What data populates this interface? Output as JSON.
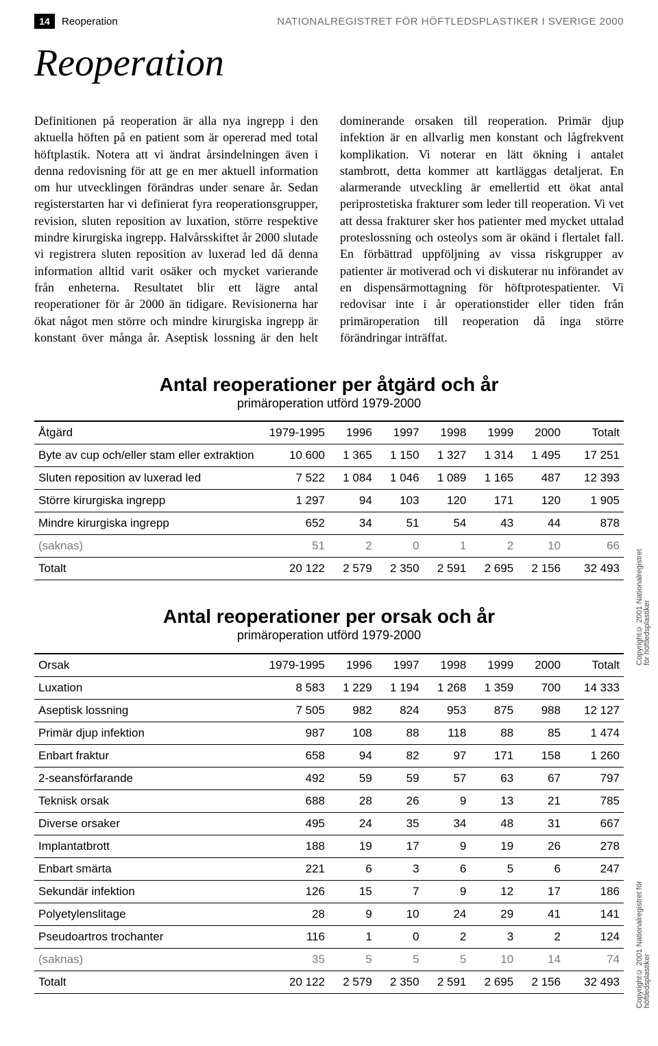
{
  "header": {
    "page_number": "14",
    "crumb": "Reoperation",
    "registry": "NATIONALREGISTRET FÖR HÖFTLEDSPLASTIKER I SVERIGE 2000"
  },
  "title": "Reoperation",
  "body": "Definitionen på reoperation är alla nya ingrepp i den aktuella höften på en patient som är opererad med total höftplastik. Notera att vi ändrat årsindelningen även i denna redovisning för att ge en mer aktuell information om hur utvecklingen förändras under senare år. Sedan registerstarten har vi definierat fyra reoperationsgrupper, revision, sluten reposition av luxation, större respektive mindre kirurgiska ingrepp. Halvårsskiftet år 2000 slutade vi registrera sluten reposition av luxerad led då denna information alltid varit osäker och mycket varierande från enheterna. Resultatet blir ett lägre antal reoperationer för år 2000 än tidigare. Revisionerna har ökat något men större och mindre kirurgiska ingrepp är konstant över många år. Aseptisk lossning är den helt dominerande orsaken till reoperation. Primär djup infektion är en allvarlig men konstant och lågfrekvent komplikation. Vi noterar en lätt ökning i antalet stambrott, detta kommer att kartläggas detaljerat. En alarmerande utveckling är emellertid ett ökat antal periprostetiska frakturer som leder till reoperation. Vi vet att dessa frakturer sker hos patienter med mycket uttalad proteslossning och osteolys som är okänd i flertalet fall. En förbättrad uppföljning av vissa riskgrupper av patienter är motiverad och vi diskuterar nu införandet av en dispensärmottagning för höftprotespatienter. Vi redovisar inte i år operationstider eller tiden från primäroperation till reoperation då inga större förändringar inträffat.",
  "copyright": "Copyright© 2001 Nationalregistret för höftledsplastiker",
  "table1": {
    "title": "Antal reoperationer per åtgärd och år",
    "subtitle": "primäroperation utförd 1979-2000",
    "columns": [
      "Åtgärd",
      "1979-1995",
      "1996",
      "1997",
      "1998",
      "1999",
      "2000",
      "Totalt"
    ],
    "rows": [
      {
        "label": "Byte av cup och/eller stam eller extraktion",
        "v": [
          "10 600",
          "1 365",
          "1 150",
          "1 327",
          "1 314",
          "1 495",
          "17 251"
        ]
      },
      {
        "label": "Sluten reposition av luxerad led",
        "v": [
          "7 522",
          "1 084",
          "1 046",
          "1 089",
          "1 165",
          "487",
          "12 393"
        ]
      },
      {
        "label": "Större kirurgiska ingrepp",
        "v": [
          "1 297",
          "94",
          "103",
          "120",
          "171",
          "120",
          "1 905"
        ]
      },
      {
        "label": "Mindre kirurgiska ingrepp",
        "v": [
          "652",
          "34",
          "51",
          "54",
          "43",
          "44",
          "878"
        ]
      },
      {
        "label": "(saknas)",
        "muted": true,
        "v": [
          "51",
          "2",
          "0",
          "1",
          "2",
          "10",
          "66"
        ]
      }
    ],
    "total": {
      "label": "Totalt",
      "v": [
        "20 122",
        "2 579",
        "2 350",
        "2 591",
        "2 695",
        "2 156",
        "32 493"
      ]
    }
  },
  "table2": {
    "title": "Antal reoperationer per orsak och år",
    "subtitle": "primäroperation utförd 1979-2000",
    "columns": [
      "Orsak",
      "1979-1995",
      "1996",
      "1997",
      "1998",
      "1999",
      "2000",
      "Totalt"
    ],
    "rows": [
      {
        "label": "Luxation",
        "v": [
          "8 583",
          "1 229",
          "1 194",
          "1 268",
          "1 359",
          "700",
          "14 333"
        ]
      },
      {
        "label": "Aseptisk lossning",
        "v": [
          "7 505",
          "982",
          "824",
          "953",
          "875",
          "988",
          "12 127"
        ]
      },
      {
        "label": "Primär djup infektion",
        "v": [
          "987",
          "108",
          "88",
          "118",
          "88",
          "85",
          "1 474"
        ]
      },
      {
        "label": "Enbart fraktur",
        "v": [
          "658",
          "94",
          "82",
          "97",
          "171",
          "158",
          "1 260"
        ]
      },
      {
        "label": "2-seansförfarande",
        "v": [
          "492",
          "59",
          "59",
          "57",
          "63",
          "67",
          "797"
        ]
      },
      {
        "label": "Teknisk orsak",
        "v": [
          "688",
          "28",
          "26",
          "9",
          "13",
          "21",
          "785"
        ]
      },
      {
        "label": "Diverse orsaker",
        "v": [
          "495",
          "24",
          "35",
          "34",
          "48",
          "31",
          "667"
        ]
      },
      {
        "label": "Implantatbrott",
        "v": [
          "188",
          "19",
          "17",
          "9",
          "19",
          "26",
          "278"
        ]
      },
      {
        "label": "Enbart smärta",
        "v": [
          "221",
          "6",
          "3",
          "6",
          "5",
          "6",
          "247"
        ]
      },
      {
        "label": "Sekundär infektion",
        "v": [
          "126",
          "15",
          "7",
          "9",
          "12",
          "17",
          "186"
        ]
      },
      {
        "label": "Polyetylenslitage",
        "v": [
          "28",
          "9",
          "10",
          "24",
          "29",
          "41",
          "141"
        ]
      },
      {
        "label": "Pseudoartros trochanter",
        "v": [
          "116",
          "1",
          "0",
          "2",
          "3",
          "2",
          "124"
        ]
      },
      {
        "label": "(saknas)",
        "muted": true,
        "v": [
          "35",
          "5",
          "5",
          "5",
          "10",
          "14",
          "74"
        ]
      }
    ],
    "total": {
      "label": "Totalt",
      "v": [
        "20 122",
        "2 579",
        "2 350",
        "2 591",
        "2 695",
        "2 156",
        "32 493"
      ]
    }
  },
  "style": {
    "col_widths": [
      "38%",
      "12%",
      "8%",
      "8%",
      "8%",
      "8%",
      "8%",
      "10%"
    ]
  }
}
